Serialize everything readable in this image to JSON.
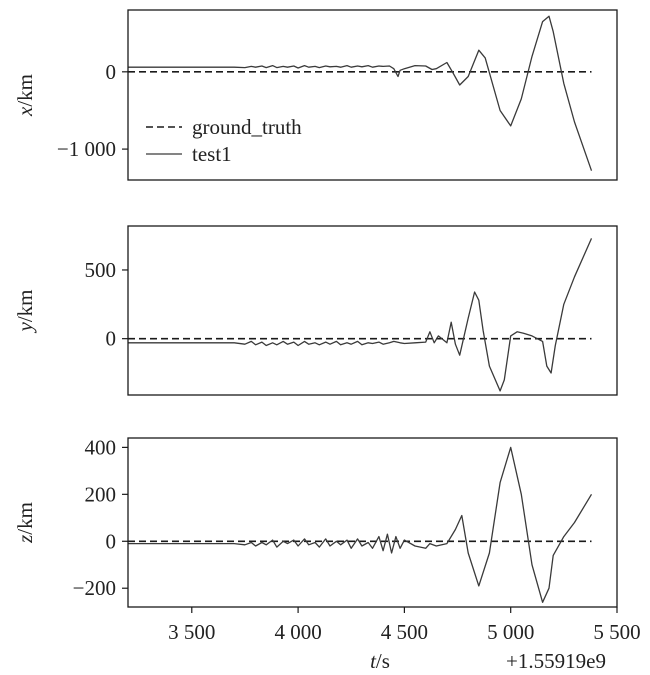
{
  "chart_data": [
    {
      "type": "line",
      "panel": "x",
      "ylabel_var": "x",
      "ylabel_unit": "/km",
      "xlim": [
        3200,
        5500
      ],
      "ylim": [
        -1400,
        800
      ],
      "yticks": [
        {
          "value": 0,
          "label": "0"
        },
        {
          "value": -1000,
          "label": "−1 000"
        }
      ],
      "legend": {
        "position": "lower-left",
        "entries": [
          "ground_truth",
          "test1"
        ]
      },
      "series": [
        {
          "name": "ground_truth",
          "style": "dashed",
          "x": [
            3200,
            5380
          ],
          "y": [
            0,
            0
          ]
        },
        {
          "name": "test1",
          "style": "solid",
          "x": [
            3200,
            3500,
            3700,
            3750,
            3780,
            3800,
            3830,
            3850,
            3880,
            3900,
            3930,
            3950,
            3980,
            4000,
            4030,
            4050,
            4080,
            4100,
            4130,
            4150,
            4180,
            4200,
            4230,
            4250,
            4280,
            4300,
            4330,
            4350,
            4380,
            4400,
            4430,
            4450,
            4470,
            4480,
            4500,
            4550,
            4600,
            4630,
            4650,
            4700,
            4730,
            4760,
            4800,
            4850,
            4880,
            4950,
            5000,
            5050,
            5100,
            5150,
            5180,
            5200,
            5250,
            5300,
            5380
          ],
          "y": [
            60,
            60,
            60,
            55,
            70,
            60,
            75,
            55,
            80,
            55,
            70,
            60,
            75,
            50,
            80,
            60,
            70,
            55,
            75,
            65,
            70,
            60,
            80,
            60,
            75,
            65,
            80,
            60,
            75,
            70,
            75,
            40,
            -60,
            20,
            40,
            80,
            75,
            30,
            40,
            120,
            -20,
            -170,
            -60,
            280,
            180,
            -500,
            -700,
            -350,
            200,
            650,
            720,
            520,
            -150,
            -650,
            -1280
          ]
        }
      ]
    },
    {
      "type": "line",
      "panel": "y",
      "ylabel_var": "y",
      "ylabel_unit": "/km",
      "xlim": [
        3200,
        5500
      ],
      "ylim": [
        -410,
        820
      ],
      "yticks": [
        {
          "value": 500,
          "label": "500"
        },
        {
          "value": 0,
          "label": "0"
        }
      ],
      "series": [
        {
          "name": "ground_truth",
          "style": "dashed",
          "x": [
            3200,
            5380
          ],
          "y": [
            0,
            0
          ]
        },
        {
          "name": "test1",
          "style": "solid",
          "x": [
            3200,
            3500,
            3700,
            3750,
            3780,
            3800,
            3830,
            3850,
            3880,
            3900,
            3930,
            3950,
            3980,
            4000,
            4030,
            4050,
            4080,
            4100,
            4130,
            4150,
            4180,
            4200,
            4230,
            4250,
            4280,
            4300,
            4330,
            4350,
            4380,
            4400,
            4430,
            4450,
            4480,
            4500,
            4550,
            4600,
            4620,
            4640,
            4660,
            4700,
            4720,
            4740,
            4760,
            4800,
            4830,
            4850,
            4870,
            4900,
            4950,
            4970,
            5000,
            5030,
            5060,
            5100,
            5150,
            5170,
            5190,
            5210,
            5250,
            5300,
            5380
          ],
          "y": [
            -30,
            -30,
            -30,
            -40,
            -20,
            -45,
            -25,
            -50,
            -30,
            -45,
            -20,
            -40,
            -25,
            -50,
            -20,
            -40,
            -30,
            -45,
            -25,
            -40,
            -20,
            -45,
            -30,
            -40,
            -20,
            -45,
            -30,
            -35,
            -25,
            -40,
            -30,
            -20,
            -30,
            -35,
            -30,
            -25,
            50,
            -30,
            20,
            -30,
            120,
            -40,
            -120,
            150,
            340,
            280,
            60,
            -200,
            -380,
            -300,
            20,
            50,
            40,
            20,
            -20,
            -200,
            -250,
            -50,
            250,
            450,
            730
          ]
        }
      ]
    },
    {
      "type": "line",
      "panel": "z",
      "ylabel_var": "z",
      "ylabel_unit": "/km",
      "xlim": [
        3200,
        5500
      ],
      "ylim": [
        -280,
        440
      ],
      "yticks": [
        {
          "value": 400,
          "label": "400"
        },
        {
          "value": 200,
          "label": "200"
        },
        {
          "value": 0,
          "label": "0"
        },
        {
          "value": -200,
          "label": "−200"
        }
      ],
      "series": [
        {
          "name": "ground_truth",
          "style": "dashed",
          "x": [
            3200,
            5380
          ],
          "y": [
            0,
            0
          ]
        },
        {
          "name": "test1",
          "style": "solid",
          "x": [
            3200,
            3500,
            3700,
            3750,
            3780,
            3800,
            3830,
            3850,
            3880,
            3900,
            3930,
            3950,
            3980,
            4000,
            4030,
            4050,
            4080,
            4100,
            4130,
            4150,
            4180,
            4200,
            4230,
            4250,
            4280,
            4300,
            4330,
            4350,
            4380,
            4400,
            4420,
            4440,
            4460,
            4480,
            4500,
            4550,
            4600,
            4620,
            4650,
            4700,
            4740,
            4770,
            4800,
            4850,
            4900,
            4950,
            5000,
            5050,
            5100,
            5150,
            5180,
            5200,
            5250,
            5300,
            5380
          ],
          "y": [
            -10,
            -10,
            -10,
            -15,
            -5,
            -20,
            -5,
            -15,
            5,
            -25,
            0,
            -10,
            5,
            -20,
            10,
            -15,
            -5,
            -25,
            10,
            -20,
            0,
            -15,
            5,
            -30,
            10,
            -20,
            -5,
            -30,
            20,
            -40,
            30,
            -50,
            20,
            -30,
            5,
            -20,
            -30,
            -10,
            -20,
            -10,
            50,
            110,
            -50,
            -190,
            -50,
            250,
            400,
            200,
            -100,
            -260,
            -200,
            -60,
            20,
            80,
            200
          ]
        }
      ]
    }
  ],
  "shared_x_axis": {
    "ticks": [
      {
        "value": 3500,
        "label": "3 500"
      },
      {
        "value": 4000,
        "label": "4 000"
      },
      {
        "value": 4500,
        "label": "4 500"
      },
      {
        "value": 5000,
        "label": "5 000"
      },
      {
        "value": 5500,
        "label": "5 500"
      }
    ],
    "label_var": "t",
    "label_unit": "/s",
    "offset_text": "+1.55919e9"
  }
}
